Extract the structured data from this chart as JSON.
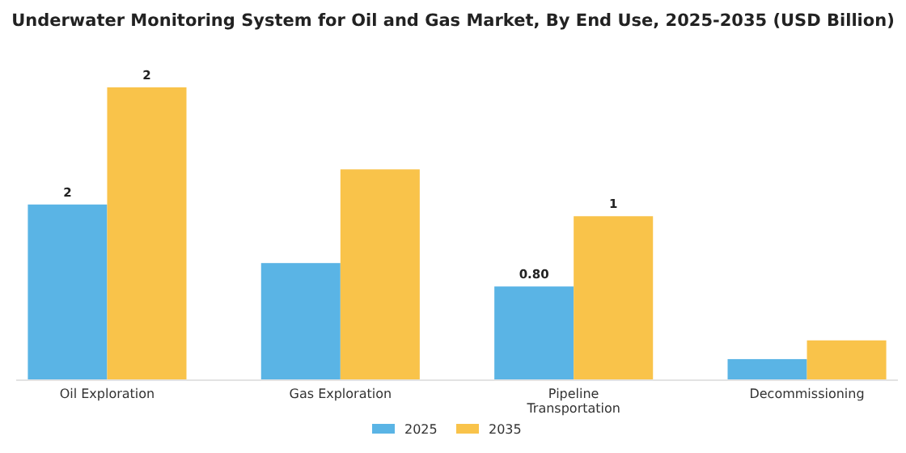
{
  "chart_data": {
    "type": "bar",
    "title": "Underwater Monitoring System for Oil and Gas Market, By End Use, 2025-2035 (USD Billion)",
    "categories": [
      "Oil Exploration",
      "Gas Exploration",
      "Pipeline Transportation",
      "Decommissioning"
    ],
    "series": [
      {
        "name": "2025",
        "color": "#5ab4e5",
        "values": [
          1.5,
          1.0,
          0.8,
          0.18
        ],
        "value_labels": [
          "2",
          null,
          "0.80",
          null
        ]
      },
      {
        "name": "2035",
        "color": "#f9c34a",
        "values": [
          2.5,
          1.8,
          1.4,
          0.34
        ],
        "value_labels": [
          "2",
          null,
          "1",
          null
        ]
      }
    ],
    "legend": "bottom",
    "grid": false
  }
}
